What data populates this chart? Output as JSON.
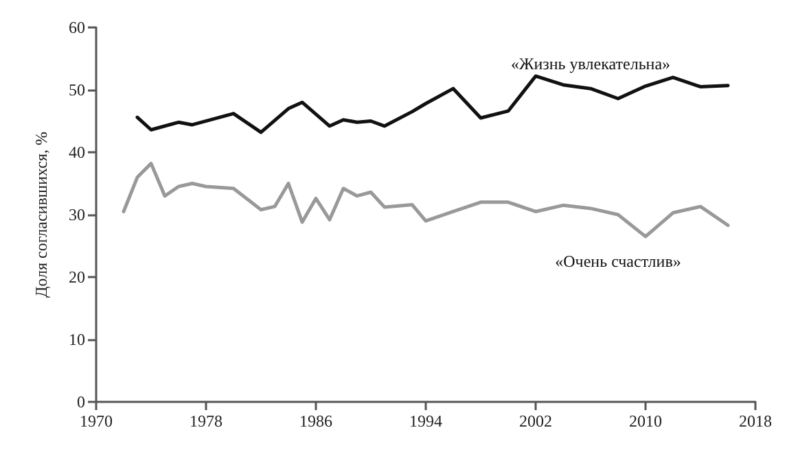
{
  "chart_data": {
    "type": "line",
    "ylabel": "Доля согласившихся, %",
    "xlim": [
      1970,
      2018
    ],
    "xticks": [
      1970,
      1978,
      1986,
      1994,
      2002,
      2010,
      2018
    ],
    "ylim": [
      0,
      60
    ],
    "yticks": [
      0,
      10,
      20,
      30,
      40,
      50,
      60
    ],
    "grid": false,
    "legend": false,
    "marker": "none",
    "line_style": "solid",
    "series": [
      {
        "name": "«Жизнь увлекательна»",
        "color": "#111111",
        "x": [
          1973,
          1974,
          1976,
          1977,
          1980,
          1982,
          1984,
          1985,
          1987,
          1988,
          1989,
          1990,
          1991,
          1993,
          1994,
          1996,
          1998,
          2000,
          2002,
          2004,
          2006,
          2008,
          2010,
          2012,
          2014,
          2016
        ],
        "values": [
          45.6,
          43.6,
          44.8,
          44.4,
          46.2,
          43.2,
          47,
          48,
          44.2,
          45.2,
          44.8,
          45,
          44.2,
          46.5,
          47.8,
          50.2,
          45.5,
          46.6,
          52.2,
          50.8,
          50.2,
          48.6,
          50.6,
          52,
          50.5,
          50.7
        ]
      },
      {
        "name": "«Очень счастлив»",
        "color": "#999999",
        "x": [
          1972,
          1973,
          1974,
          1975,
          1976,
          1977,
          1978,
          1980,
          1982,
          1983,
          1984,
          1985,
          1986,
          1987,
          1988,
          1989,
          1990,
          1991,
          1993,
          1994,
          1996,
          1998,
          2000,
          2002,
          2004,
          2006,
          2008,
          2010,
          2012,
          2014,
          2016
        ],
        "values": [
          30.5,
          36,
          38.2,
          33,
          34.5,
          35,
          34.5,
          34.2,
          30.8,
          31.3,
          35,
          28.8,
          32.6,
          29.2,
          34.2,
          33,
          33.6,
          31.2,
          31.6,
          29,
          30.5,
          32,
          32,
          30.5,
          31.5,
          31,
          30,
          26.5,
          30.3,
          31.3,
          28.3
        ]
      }
    ]
  }
}
